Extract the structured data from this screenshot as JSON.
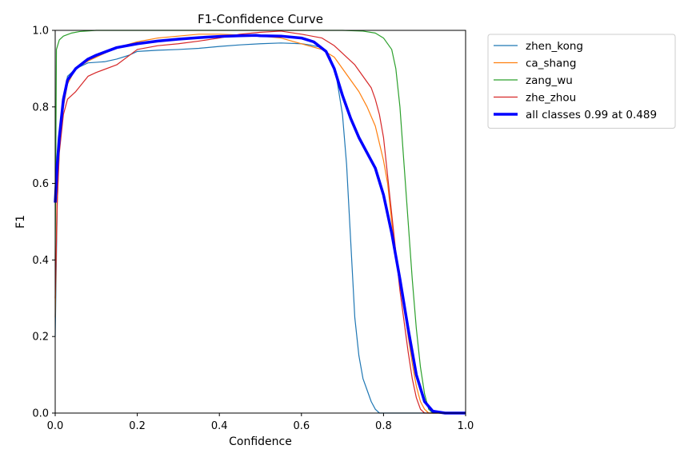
{
  "chart_data": {
    "type": "line",
    "title": "F1-Confidence Curve",
    "xlabel": "Confidence",
    "ylabel": "F1",
    "xlim": [
      0.0,
      1.0
    ],
    "ylim": [
      0.0,
      1.0
    ],
    "grid": false,
    "legend_position": "outside-top-right",
    "x_ticks": [
      "0.0",
      "0.2",
      "0.4",
      "0.6",
      "0.8",
      "1.0"
    ],
    "y_ticks": [
      "0.0",
      "0.2",
      "0.4",
      "0.6",
      "0.8",
      "1.0"
    ],
    "series": [
      {
        "name": "zhen_kong",
        "color": "#1f77b4",
        "points": [
          [
            0.0,
            0.2
          ],
          [
            0.005,
            0.55
          ],
          [
            0.01,
            0.7
          ],
          [
            0.02,
            0.82
          ],
          [
            0.03,
            0.88
          ],
          [
            0.05,
            0.9
          ],
          [
            0.08,
            0.915
          ],
          [
            0.12,
            0.918
          ],
          [
            0.15,
            0.925
          ],
          [
            0.18,
            0.935
          ],
          [
            0.2,
            0.945
          ],
          [
            0.25,
            0.948
          ],
          [
            0.3,
            0.95
          ],
          [
            0.35,
            0.953
          ],
          [
            0.4,
            0.958
          ],
          [
            0.45,
            0.962
          ],
          [
            0.5,
            0.965
          ],
          [
            0.55,
            0.967
          ],
          [
            0.6,
            0.965
          ],
          [
            0.62,
            0.962
          ],
          [
            0.65,
            0.955
          ],
          [
            0.67,
            0.93
          ],
          [
            0.685,
            0.88
          ],
          [
            0.7,
            0.78
          ],
          [
            0.71,
            0.65
          ],
          [
            0.715,
            0.55
          ],
          [
            0.72,
            0.45
          ],
          [
            0.725,
            0.35
          ],
          [
            0.73,
            0.25
          ],
          [
            0.74,
            0.15
          ],
          [
            0.75,
            0.09
          ],
          [
            0.76,
            0.06
          ],
          [
            0.77,
            0.03
          ],
          [
            0.78,
            0.01
          ],
          [
            0.79,
            0.0
          ],
          [
            1.0,
            0.0
          ]
        ]
      },
      {
        "name": "ca_shang",
        "color": "#ff7f0e",
        "points": [
          [
            0.0,
            0.25
          ],
          [
            0.005,
            0.6
          ],
          [
            0.01,
            0.72
          ],
          [
            0.02,
            0.8
          ],
          [
            0.03,
            0.86
          ],
          [
            0.05,
            0.9
          ],
          [
            0.08,
            0.92
          ],
          [
            0.1,
            0.93
          ],
          [
            0.15,
            0.955
          ],
          [
            0.2,
            0.97
          ],
          [
            0.25,
            0.98
          ],
          [
            0.3,
            0.985
          ],
          [
            0.35,
            0.99
          ],
          [
            0.4,
            0.99
          ],
          [
            0.45,
            0.988
          ],
          [
            0.5,
            0.985
          ],
          [
            0.55,
            0.98
          ],
          [
            0.6,
            0.965
          ],
          [
            0.65,
            0.95
          ],
          [
            0.68,
            0.93
          ],
          [
            0.7,
            0.9
          ],
          [
            0.72,
            0.87
          ],
          [
            0.74,
            0.84
          ],
          [
            0.76,
            0.8
          ],
          [
            0.78,
            0.75
          ],
          [
            0.8,
            0.66
          ],
          [
            0.81,
            0.6
          ],
          [
            0.82,
            0.5
          ],
          [
            0.83,
            0.42
          ],
          [
            0.84,
            0.35
          ],
          [
            0.85,
            0.28
          ],
          [
            0.86,
            0.2
          ],
          [
            0.87,
            0.13
          ],
          [
            0.88,
            0.07
          ],
          [
            0.89,
            0.03
          ],
          [
            0.9,
            0.01
          ],
          [
            0.91,
            0.0
          ],
          [
            1.0,
            0.0
          ]
        ]
      },
      {
        "name": "zang_wu",
        "color": "#2ca02c",
        "points": [
          [
            0.0,
            0.4
          ],
          [
            0.003,
            0.95
          ],
          [
            0.01,
            0.975
          ],
          [
            0.02,
            0.985
          ],
          [
            0.04,
            0.993
          ],
          [
            0.06,
            0.997
          ],
          [
            0.1,
            1.0
          ],
          [
            0.7,
            1.0
          ],
          [
            0.75,
            0.998
          ],
          [
            0.78,
            0.993
          ],
          [
            0.8,
            0.98
          ],
          [
            0.82,
            0.95
          ],
          [
            0.83,
            0.9
          ],
          [
            0.84,
            0.8
          ],
          [
            0.85,
            0.65
          ],
          [
            0.86,
            0.5
          ],
          [
            0.87,
            0.35
          ],
          [
            0.88,
            0.22
          ],
          [
            0.89,
            0.12
          ],
          [
            0.9,
            0.05
          ],
          [
            0.91,
            0.01
          ],
          [
            0.92,
            0.0
          ],
          [
            1.0,
            0.0
          ]
        ]
      },
      {
        "name": "zhe_zhou",
        "color": "#d62728",
        "points": [
          [
            0.0,
            0.3
          ],
          [
            0.005,
            0.55
          ],
          [
            0.01,
            0.68
          ],
          [
            0.02,
            0.78
          ],
          [
            0.03,
            0.82
          ],
          [
            0.05,
            0.84
          ],
          [
            0.08,
            0.88
          ],
          [
            0.1,
            0.89
          ],
          [
            0.15,
            0.91
          ],
          [
            0.2,
            0.95
          ],
          [
            0.25,
            0.96
          ],
          [
            0.3,
            0.965
          ],
          [
            0.35,
            0.972
          ],
          [
            0.4,
            0.98
          ],
          [
            0.45,
            0.99
          ],
          [
            0.5,
            0.995
          ],
          [
            0.55,
            0.998
          ],
          [
            0.6,
            0.99
          ],
          [
            0.65,
            0.98
          ],
          [
            0.68,
            0.96
          ],
          [
            0.7,
            0.94
          ],
          [
            0.73,
            0.91
          ],
          [
            0.75,
            0.88
          ],
          [
            0.77,
            0.85
          ],
          [
            0.78,
            0.82
          ],
          [
            0.79,
            0.78
          ],
          [
            0.8,
            0.72
          ],
          [
            0.81,
            0.62
          ],
          [
            0.82,
            0.52
          ],
          [
            0.83,
            0.42
          ],
          [
            0.84,
            0.32
          ],
          [
            0.85,
            0.24
          ],
          [
            0.86,
            0.16
          ],
          [
            0.87,
            0.09
          ],
          [
            0.88,
            0.04
          ],
          [
            0.89,
            0.01
          ],
          [
            0.9,
            0.0
          ],
          [
            1.0,
            0.0
          ]
        ]
      },
      {
        "name": "all classes 0.99 at 0.489",
        "color": "#0000ff",
        "points": [
          [
            0.0,
            0.55
          ],
          [
            0.005,
            0.65
          ],
          [
            0.01,
            0.72
          ],
          [
            0.02,
            0.82
          ],
          [
            0.03,
            0.87
          ],
          [
            0.05,
            0.9
          ],
          [
            0.08,
            0.925
          ],
          [
            0.1,
            0.935
          ],
          [
            0.15,
            0.955
          ],
          [
            0.2,
            0.965
          ],
          [
            0.25,
            0.972
          ],
          [
            0.3,
            0.977
          ],
          [
            0.35,
            0.981
          ],
          [
            0.4,
            0.984
          ],
          [
            0.45,
            0.986
          ],
          [
            0.489,
            0.987
          ],
          [
            0.5,
            0.986
          ],
          [
            0.55,
            0.985
          ],
          [
            0.6,
            0.98
          ],
          [
            0.63,
            0.97
          ],
          [
            0.66,
            0.945
          ],
          [
            0.68,
            0.9
          ],
          [
            0.7,
            0.83
          ],
          [
            0.72,
            0.77
          ],
          [
            0.74,
            0.72
          ],
          [
            0.76,
            0.68
          ],
          [
            0.78,
            0.64
          ],
          [
            0.8,
            0.57
          ],
          [
            0.82,
            0.47
          ],
          [
            0.84,
            0.35
          ],
          [
            0.86,
            0.22
          ],
          [
            0.88,
            0.1
          ],
          [
            0.9,
            0.03
          ],
          [
            0.92,
            0.005
          ],
          [
            0.95,
            0.0
          ],
          [
            1.0,
            0.0
          ]
        ]
      }
    ]
  }
}
